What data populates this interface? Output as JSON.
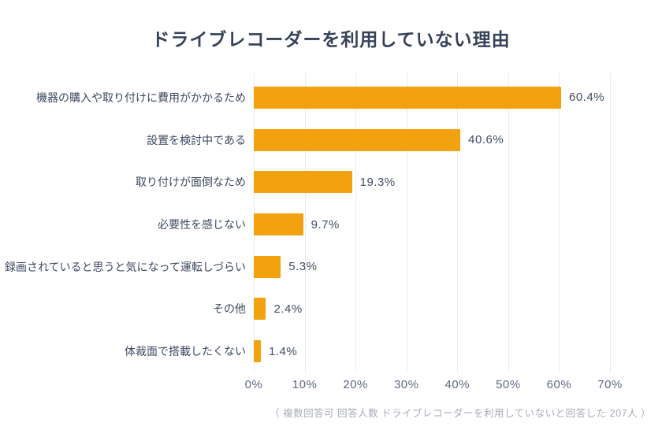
{
  "title": "ドライブレコーダーを利用していない理由",
  "footnote": "（ 複数回答可 回答人数 ドライブレコーダーを利用していないと回答した 207人 ）",
  "chart_data": {
    "type": "bar",
    "orientation": "horizontal",
    "title": "ドライブレコーダーを利用していない理由",
    "categories": [
      "機器の購入や取り付けに費用がかかるため",
      "設置を検討中である",
      "取り付けが面倒なため",
      "必要性を感じない",
      "録画されていると思うと気になって運転しづらい",
      "その他",
      "体裁面で搭載したくない"
    ],
    "values": [
      60.4,
      40.6,
      19.3,
      9.7,
      5.3,
      2.4,
      1.4
    ],
    "value_labels": [
      "60.4%",
      "40.6%",
      "19.3%",
      "9.7%",
      "5.3%",
      "2.4%",
      "1.4%"
    ],
    "x_ticks": [
      "0%",
      "10%",
      "20%",
      "30%",
      "40%",
      "50%",
      "60%",
      "70%"
    ],
    "xlim": [
      0,
      70
    ],
    "xlabel": "",
    "ylabel": "",
    "grid": "vertical-only",
    "legend": "none",
    "bar_color": "#F2A20E",
    "annotation": "（ 複数回答可 回答人数 ドライブレコーダーを利用していないと回答した 207人 ）"
  },
  "colors": {
    "background": "#ffffff",
    "title_text": "#36425A",
    "category_text": "#3C4961",
    "value_text": "#414E63",
    "axis_text": "#5D6880",
    "footnote_text": "#A6ABB5",
    "gridline": "#e9ebef",
    "bar": "#F2A20E"
  }
}
